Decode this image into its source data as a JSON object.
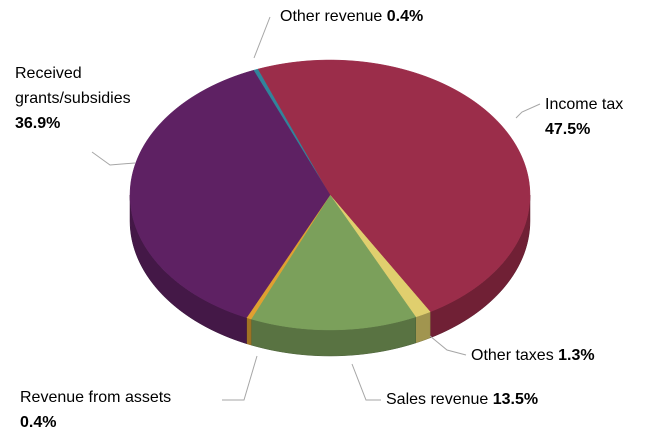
{
  "chart_data": {
    "type": "pie",
    "categories": [
      "Other revenue",
      "Income tax",
      "Other taxes",
      "Sales revenue",
      "Revenue from assets",
      "Received grants/subsidies"
    ],
    "values": [
      0.4,
      47.5,
      1.3,
      13.5,
      0.4,
      36.9
    ],
    "value_labels": [
      "0.4%",
      "47.5%",
      "1.3%",
      "13.5%",
      "0.4%",
      "36.9%"
    ],
    "colors": [
      "#31849b",
      "#9b2d4a",
      "#e0cf6e",
      "#7ba05b",
      "#e0a030",
      "#5e2163"
    ]
  }
}
